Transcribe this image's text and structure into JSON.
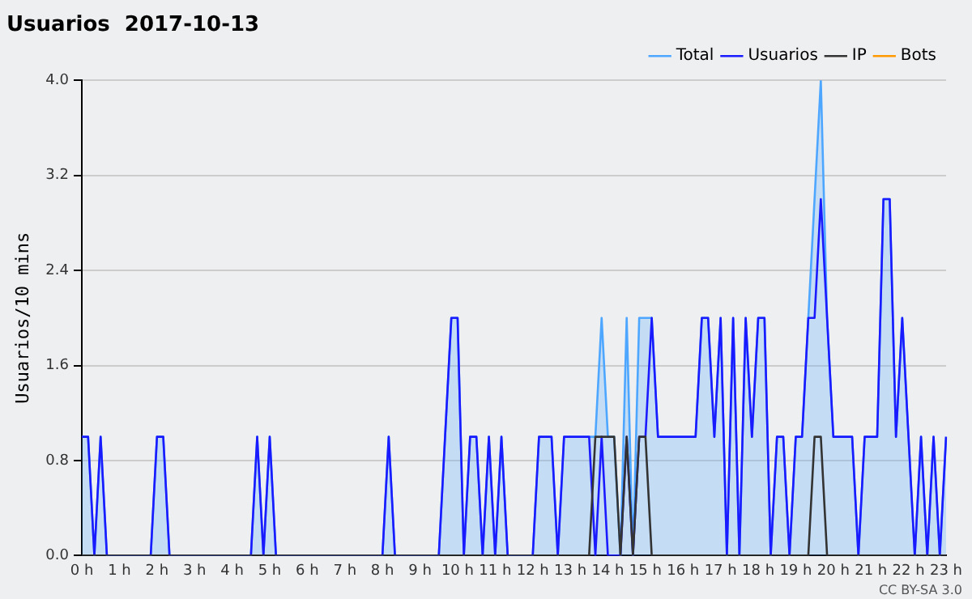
{
  "chart_data": {
    "type": "line",
    "title": "Usuarios  2017-10-13",
    "ylabel": "Usuarios/10 mins",
    "annotations": [
      "CC BY-SA 3.0"
    ],
    "categories": [
      "0 h",
      null,
      null,
      null,
      null,
      null,
      "1 h",
      null,
      null,
      null,
      null,
      null,
      "2 h",
      null,
      null,
      null,
      null,
      null,
      "3 h",
      null,
      null,
      null,
      null,
      null,
      "4 h",
      null,
      null,
      null,
      null,
      null,
      "5 h",
      null,
      null,
      null,
      null,
      null,
      "6 h",
      null,
      null,
      null,
      null,
      null,
      "7 h",
      null,
      null,
      null,
      null,
      null,
      "8 h",
      null,
      null,
      null,
      null,
      null,
      "9 h",
      null,
      null,
      null,
      null,
      null,
      "10 h",
      null,
      null,
      null,
      null,
      null,
      "11 h",
      null,
      null,
      null,
      null,
      null,
      "12 h",
      null,
      null,
      null,
      null,
      null,
      "13 h",
      null,
      null,
      null,
      null,
      null,
      "14 h",
      null,
      null,
      null,
      null,
      null,
      "15 h",
      null,
      null,
      null,
      null,
      null,
      "16 h",
      null,
      null,
      null,
      null,
      null,
      "17 h",
      null,
      null,
      null,
      null,
      null,
      "18 h",
      null,
      null,
      null,
      null,
      null,
      "19 h",
      null,
      null,
      null,
      null,
      null,
      "20 h",
      null,
      null,
      null,
      null,
      null,
      "21 h",
      null,
      null,
      null,
      null,
      null,
      "22 h",
      null,
      null,
      null,
      null,
      null,
      "23 h"
    ],
    "series": [
      {
        "name": "Total",
        "type": "area",
        "color": "#4da6ff",
        "values": [
          1,
          1,
          0,
          1,
          0,
          0,
          0,
          0,
          0,
          0,
          0,
          0,
          1,
          1,
          0,
          0,
          0,
          0,
          0,
          0,
          0,
          0,
          0,
          0,
          0,
          0,
          0,
          0,
          1,
          0,
          1,
          0,
          0,
          0,
          0,
          0,
          0,
          0,
          0,
          0,
          0,
          0,
          0,
          0,
          0,
          0,
          0,
          0,
          0,
          1,
          0,
          0,
          0,
          0,
          0,
          0,
          0,
          0,
          1,
          2,
          2,
          0,
          1,
          1,
          0,
          1,
          0,
          1,
          0,
          0,
          0,
          0,
          0,
          1,
          1,
          1,
          0,
          1,
          1,
          1,
          1,
          1,
          1,
          2,
          1,
          1,
          0,
          2,
          0,
          2,
          2,
          2,
          1,
          1,
          1,
          1,
          1,
          1,
          1,
          2,
          2,
          1,
          2,
          0,
          2,
          0,
          2,
          1,
          2,
          2,
          0,
          1,
          1,
          0,
          1,
          1,
          2,
          3,
          4,
          2,
          1,
          1,
          1,
          1,
          0,
          1,
          1,
          1,
          3,
          3,
          1,
          2,
          1,
          0,
          1,
          0,
          1,
          0,
          1
        ]
      },
      {
        "name": "Usuarios",
        "type": "line",
        "color": "#1a1aff",
        "values": [
          1,
          1,
          0,
          1,
          0,
          0,
          0,
          0,
          0,
          0,
          0,
          0,
          1,
          1,
          0,
          0,
          0,
          0,
          0,
          0,
          0,
          0,
          0,
          0,
          0,
          0,
          0,
          0,
          1,
          0,
          1,
          0,
          0,
          0,
          0,
          0,
          0,
          0,
          0,
          0,
          0,
          0,
          0,
          0,
          0,
          0,
          0,
          0,
          0,
          1,
          0,
          0,
          0,
          0,
          0,
          0,
          0,
          0,
          1,
          2,
          2,
          0,
          1,
          1,
          0,
          1,
          0,
          1,
          0,
          0,
          0,
          0,
          0,
          1,
          1,
          1,
          0,
          1,
          1,
          1,
          1,
          1,
          0,
          1,
          0,
          0,
          0,
          1,
          0,
          1,
          1,
          2,
          1,
          1,
          1,
          1,
          1,
          1,
          1,
          2,
          2,
          1,
          2,
          0,
          2,
          0,
          2,
          1,
          2,
          2,
          0,
          1,
          1,
          0,
          1,
          1,
          2,
          2,
          3,
          2,
          1,
          1,
          1,
          1,
          0,
          1,
          1,
          1,
          3,
          3,
          1,
          2,
          1,
          0,
          1,
          0,
          1,
          0,
          1
        ]
      },
      {
        "name": "IP",
        "type": "line",
        "color": "#333333",
        "values": [
          0,
          0,
          0,
          0,
          0,
          0,
          0,
          0,
          0,
          0,
          0,
          0,
          0,
          0,
          0,
          0,
          0,
          0,
          0,
          0,
          0,
          0,
          0,
          0,
          0,
          0,
          0,
          0,
          0,
          0,
          0,
          0,
          0,
          0,
          0,
          0,
          0,
          0,
          0,
          0,
          0,
          0,
          0,
          0,
          0,
          0,
          0,
          0,
          0,
          0,
          0,
          0,
          0,
          0,
          0,
          0,
          0,
          0,
          0,
          0,
          0,
          0,
          0,
          0,
          0,
          0,
          0,
          0,
          0,
          0,
          0,
          0,
          0,
          0,
          0,
          0,
          0,
          0,
          0,
          0,
          0,
          0,
          1,
          1,
          1,
          1,
          0,
          1,
          0,
          1,
          1,
          0,
          0,
          0,
          0,
          0,
          0,
          0,
          0,
          0,
          0,
          0,
          0,
          0,
          0,
          0,
          0,
          0,
          0,
          0,
          0,
          0,
          0,
          0,
          0,
          0,
          0,
          1,
          1,
          0,
          0,
          0,
          0,
          0,
          0,
          0,
          0,
          0,
          0,
          0,
          0,
          0,
          0,
          0,
          0,
          0,
          0,
          0,
          0
        ]
      },
      {
        "name": "Bots",
        "type": "line",
        "color": "#ff9900",
        "values": [
          null,
          null,
          null,
          null,
          null,
          null,
          null,
          null,
          null,
          null,
          null,
          null,
          null,
          null,
          null,
          null,
          null,
          null,
          null,
          null,
          null,
          null,
          null,
          null,
          null,
          null,
          null,
          null,
          null,
          null,
          null,
          null,
          null,
          null,
          null,
          null,
          null,
          null,
          null,
          null,
          null,
          null,
          null,
          null,
          null,
          null,
          null,
          null,
          null,
          null,
          null,
          null,
          null,
          null,
          null,
          null,
          null,
          null,
          null,
          null,
          null,
          null,
          null,
          null,
          null,
          null,
          null,
          null,
          null,
          null,
          null,
          null,
          null,
          null,
          null,
          null,
          null,
          null,
          null,
          null,
          null,
          null,
          null,
          null,
          null,
          null,
          null,
          null,
          null,
          null,
          null,
          null,
          null,
          null,
          null,
          null,
          null,
          null,
          null,
          null,
          null,
          null,
          null,
          null,
          null,
          null,
          null,
          null,
          null,
          null,
          null,
          null,
          null,
          null,
          null,
          null,
          null,
          null,
          null,
          null,
          null,
          null,
          null,
          null,
          null,
          null,
          null,
          null,
          null,
          null,
          null,
          null,
          null,
          null,
          null,
          null,
          null,
          null,
          null
        ]
      }
    ],
    "ylim": [
      0,
      4
    ],
    "yticks": [
      {
        "value": 0,
        "label": "0.0"
      },
      {
        "value": 0.8,
        "label": "0.8"
      },
      {
        "value": 1.6,
        "label": "1.6"
      },
      {
        "value": 2.4,
        "label": "2.4"
      },
      {
        "value": 3.2,
        "label": "3.2"
      },
      {
        "value": 4,
        "label": "4.0"
      }
    ],
    "grid": "y",
    "legend": "top right",
    "marker": "none",
    "line_style": "solid"
  }
}
